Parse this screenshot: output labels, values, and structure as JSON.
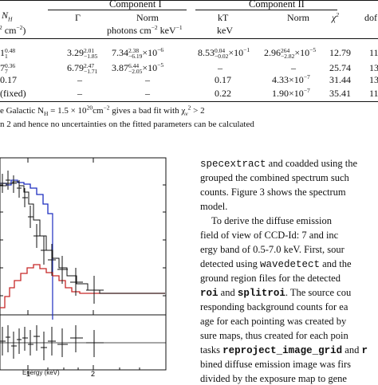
{
  "table": {
    "headers": {
      "nh": "N",
      "nh_sub": "H",
      "nh_unit": "2",
      "nh_unit_tail": " cm",
      "nh_unit_exp": "−2",
      "nh_unit_close": ")",
      "component1": "Component I",
      "component2": "Component II",
      "gamma": "Γ",
      "norm1": "Norm",
      "norm1_unit": "photons cm",
      "norm1_unit_exp1": "−2",
      "norm1_unit_mid": " keV",
      "norm1_unit_exp2": "−1",
      "kt": "kT",
      "kt_unit": "keV",
      "norm2": "Norm",
      "chi2": "χ",
      "chi2_exp": "2",
      "dof": "dof"
    },
    "rows": [
      {
        "nh": "1",
        "nh_sup": "0.48",
        "nh_sub": "1",
        "gamma_main": "3.29",
        "gamma_sup": "2.01",
        "gamma_sub": "−1.85",
        "norm1_main": "7.34",
        "norm1_sup": "2.38",
        "norm1_sub": "−6.19",
        "norm1_exp": "×10",
        "norm1_exp_val": "−6",
        "kt_main": "8.53",
        "kt_sup": "0.04",
        "kt_sub": "−0.02",
        "kt_exp": "×10",
        "kt_exp_val": "−1",
        "norm2_main": "2.96",
        "norm2_sup": "264",
        "norm2_sub": "−2.82",
        "norm2_exp": "×10",
        "norm2_exp_val": "−5",
        "chi2": "12.79",
        "dof": "11"
      },
      {
        "nh": "7",
        "nh_sup": "0.36",
        "nh_sub": "7",
        "gamma_main": "6.79",
        "gamma_sup": "2.47",
        "gamma_sub": "−1.71",
        "norm1_main": "3.87",
        "norm1_sup": "6.44",
        "norm1_sub": "−2.05",
        "norm1_exp": "×10",
        "norm1_exp_val": "−5",
        "kt_text": "–",
        "norm2_text": "–",
        "chi2": "25.74",
        "dof": "13"
      },
      {
        "nh": "0.17",
        "gamma_text": "–",
        "norm1_text": "–",
        "kt_text": "0.17",
        "norm2_main": "4.33",
        "norm2_exp": "×10",
        "norm2_exp_val": "−7",
        "chi2": "31.44",
        "dof": "13"
      },
      {
        "nh": "(fixed)",
        "gamma_text": "–",
        "norm1_text": "–",
        "kt_text": "0.22",
        "norm2_main": "1.90",
        "norm2_exp": "×10",
        "norm2_exp_val": "−7",
        "chi2": "35.41",
        "dof": "11"
      }
    ]
  },
  "footnotes": {
    "line1_prefix": "e Galactic N",
    "line1_sub": "H",
    "line1_mid": " = 1.5 × 10",
    "line1_exp": "20",
    "line1_unit": "cm",
    "line1_unit_exp": "−2",
    "line1_tail": " gives a bad fit with χ",
    "line1_nu": "ν",
    "line1_two": "2",
    "line1_end": " > 2",
    "line2": "n 2 and hence no uncertainties on the fitted parameters can be calculated"
  },
  "figure": {
    "xlabel": "Energy (keV)",
    "xtick_1": "1",
    "xtick_2": "2",
    "colors": {
      "model_red": "#c62828",
      "model_blue": "#1c2dbf",
      "data": "#111111"
    }
  },
  "body_text": {
    "l1a": "specextract",
    "l1b": " and coadded using the",
    "l2": "grouped the combined spectrum such",
    "l3": "counts. Figure 3 shows the spectrum",
    "l4": "model.",
    "l5": "To derive the diffuse emission",
    "l6": "field of view of CCD-Id: 7 and inc",
    "l7": "ergy band of 0.5-7.0 keV. First, sour",
    "l8a": "detected using ",
    "l8b": "wavedetect",
    "l8c": " and the",
    "l9": "ground region files for the detected",
    "l10a": "roi",
    "l10b": " and ",
    "l10c": "splitroi",
    "l10d": ". The source cou",
    "l11": "responding background counts for ea",
    "l12": "age for each pointing was created by",
    "l13": "sure maps, thus created for each poin",
    "l14a": "tasks ",
    "l14b": "reproject_image_grid",
    "l14c": " and ",
    "l14d": "r",
    "l15": "bined diffuse emission image was firs",
    "l16": "divided by the exposure map to gene"
  }
}
